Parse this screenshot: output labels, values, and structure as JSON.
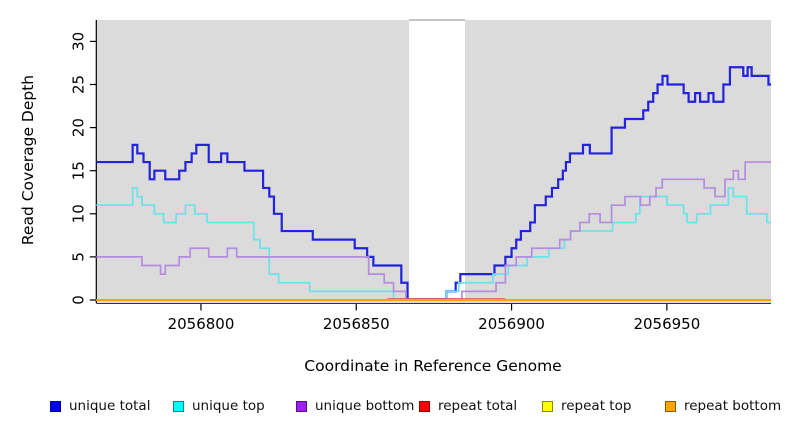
{
  "chart_data": {
    "type": "line",
    "step": true,
    "title": "",
    "xlabel": "Coordinate in Reference Genome",
    "ylabel": "Read Coverage Depth",
    "x_ticks": [
      "2056800",
      "2056850",
      "2056900",
      "2056950"
    ],
    "x_tick_values": [
      2056800,
      2056850,
      2056900,
      2056950
    ],
    "y_ticks": [
      "0",
      "5",
      "10",
      "15",
      "20",
      "25",
      "30"
    ],
    "y_tick_values": [
      0,
      5,
      10,
      15,
      20,
      25,
      30
    ],
    "x_range": [
      2056766.3,
      2056983.5
    ],
    "y_range": [
      0,
      32.5
    ],
    "grid": false,
    "plot_bg": "#DBDBDB",
    "page_bg": "#FFFFFF",
    "highlight_band": {
      "x0": 2056867,
      "x1": 2056885,
      "color": "#FFFFFF",
      "top_line_color": "#A3A3A3"
    },
    "series": [
      {
        "name": "unique-total",
        "label": "unique total",
        "color": "#2323DC",
        "legend_color": "#0000EE",
        "legend_border": "#000090",
        "width": 2.2,
        "zero_lift": true,
        "points": [
          [
            2056766,
            16
          ],
          [
            2056778,
            18
          ],
          [
            2056779.5,
            17
          ],
          [
            2056781.5,
            16
          ],
          [
            2056783.5,
            14
          ],
          [
            2056785,
            15
          ],
          [
            2056788.5,
            14
          ],
          [
            2056793,
            15
          ],
          [
            2056795,
            16
          ],
          [
            2056797,
            17
          ],
          [
            2056798.5,
            18
          ],
          [
            2056802.5,
            16
          ],
          [
            2056806.5,
            17
          ],
          [
            2056808.5,
            16
          ],
          [
            2056814,
            15
          ],
          [
            2056820,
            13
          ],
          [
            2056822,
            12
          ],
          [
            2056823.5,
            10
          ],
          [
            2056826,
            8
          ],
          [
            2056836,
            7
          ],
          [
            2056849.5,
            6
          ],
          [
            2056853.5,
            5
          ],
          [
            2056855.5,
            4
          ],
          [
            2056864.5,
            2
          ],
          [
            2056866.5,
            0
          ],
          [
            2056879,
            1
          ],
          [
            2056882,
            2
          ],
          [
            2056883.5,
            3
          ],
          [
            2056894.5,
            4
          ],
          [
            2056898,
            5
          ],
          [
            2056900,
            6
          ],
          [
            2056901.5,
            7
          ],
          [
            2056903,
            8
          ],
          [
            2056906,
            9
          ],
          [
            2056907.5,
            11
          ],
          [
            2056911,
            12
          ],
          [
            2056913,
            13
          ],
          [
            2056915,
            14
          ],
          [
            2056916.5,
            15
          ],
          [
            2056917.5,
            16
          ],
          [
            2056918.8,
            17
          ],
          [
            2056923,
            18
          ],
          [
            2056925.2,
            17
          ],
          [
            2056932.2,
            20
          ],
          [
            2056936.5,
            21
          ],
          [
            2056942.4,
            22
          ],
          [
            2056944,
            23
          ],
          [
            2056945.6,
            24
          ],
          [
            2056947,
            25
          ],
          [
            2056948.6,
            26
          ],
          [
            2056950.2,
            25
          ],
          [
            2056955.4,
            24
          ],
          [
            2056957,
            23
          ],
          [
            2056959.1,
            24
          ],
          [
            2056960.7,
            23
          ],
          [
            2056963.4,
            24
          ],
          [
            2056965,
            23
          ],
          [
            2056968.2,
            25
          ],
          [
            2056970.3,
            27
          ],
          [
            2056974.6,
            26
          ],
          [
            2056976,
            27
          ],
          [
            2056977.3,
            26
          ],
          [
            2056982.7,
            25
          ]
        ]
      },
      {
        "name": "unique-top",
        "label": "unique top",
        "color": "#69E2EA",
        "legend_color": "#00FFFF",
        "legend_border": "#008B8B",
        "width": 1.7,
        "zero_lift": true,
        "points": [
          [
            2056766,
            11
          ],
          [
            2056778,
            13
          ],
          [
            2056779.5,
            12
          ],
          [
            2056781,
            11
          ],
          [
            2056785,
            10
          ],
          [
            2056788,
            9
          ],
          [
            2056792,
            10
          ],
          [
            2056795,
            11
          ],
          [
            2056798,
            10
          ],
          [
            2056802,
            9
          ],
          [
            2056817,
            7
          ],
          [
            2056819,
            6
          ],
          [
            2056822,
            3
          ],
          [
            2056825,
            2
          ],
          [
            2056835,
            1
          ],
          [
            2056862,
            0
          ],
          [
            2056879,
            1
          ],
          [
            2056883,
            2
          ],
          [
            2056894,
            3
          ],
          [
            2056899,
            4
          ],
          [
            2056905,
            5
          ],
          [
            2056912,
            6
          ],
          [
            2056917,
            7
          ],
          [
            2056919,
            8
          ],
          [
            2056932.5,
            9
          ],
          [
            2056940,
            10
          ],
          [
            2056941.3,
            12
          ],
          [
            2056950,
            11
          ],
          [
            2056955.4,
            10
          ],
          [
            2056956.5,
            9
          ],
          [
            2056959.6,
            10
          ],
          [
            2056964,
            11
          ],
          [
            2056969.8,
            13
          ],
          [
            2056971.4,
            12
          ],
          [
            2056975.7,
            10
          ],
          [
            2056982.2,
            9
          ]
        ]
      },
      {
        "name": "unique-bottom",
        "label": "unique bottom",
        "color": "#B48CDE",
        "legend_color": "#A020F0",
        "legend_border": "#5A0B8C",
        "width": 1.7,
        "zero_lift": true,
        "points": [
          [
            2056766,
            5
          ],
          [
            2056781,
            4
          ],
          [
            2056787,
            3
          ],
          [
            2056788.5,
            4
          ],
          [
            2056793,
            5
          ],
          [
            2056796.5,
            6
          ],
          [
            2056802.5,
            5
          ],
          [
            2056808.5,
            6
          ],
          [
            2056811.5,
            5
          ],
          [
            2056854,
            3
          ],
          [
            2056859,
            2
          ],
          [
            2056862,
            1
          ],
          [
            2056866,
            0
          ],
          [
            2056884,
            1
          ],
          [
            2056895,
            2
          ],
          [
            2056898,
            4
          ],
          [
            2056901.5,
            5
          ],
          [
            2056906.5,
            6
          ],
          [
            2056915.5,
            7
          ],
          [
            2056919,
            8
          ],
          [
            2056922,
            9
          ],
          [
            2056925,
            10
          ],
          [
            2056928.5,
            9
          ],
          [
            2056932.2,
            11
          ],
          [
            2056936.5,
            12
          ],
          [
            2056941.5,
            11
          ],
          [
            2056944.5,
            12
          ],
          [
            2056946.5,
            13
          ],
          [
            2056948.5,
            14
          ],
          [
            2056962,
            13
          ],
          [
            2056965.5,
            12
          ],
          [
            2056968.7,
            14
          ],
          [
            2056971.4,
            15
          ],
          [
            2056973,
            14
          ],
          [
            2056975.2,
            16
          ]
        ]
      },
      {
        "name": "repeat-top",
        "label": "repeat top",
        "color": "#FFFF00",
        "legend_color": "#FFFF00",
        "legend_border": "#8B8B00",
        "width": 2,
        "zero_lift": false,
        "points": [
          [
            2056766,
            0
          ]
        ]
      },
      {
        "name": "repeat-total",
        "label": "repeat total",
        "color": "#F0425C",
        "legend_color": "#FF0000",
        "legend_border": "#8B0000",
        "width": 1.8,
        "zero_lift": false,
        "peek": {
          "x0": 2056860,
          "x1": 2056898,
          "lift": 1.1
        },
        "points": [
          [
            2056766,
            0
          ]
        ]
      },
      {
        "name": "repeat-bottom",
        "label": "repeat bottom",
        "color": "#FFA500",
        "legend_color": "#FFA500",
        "legend_border": "#8B5A00",
        "width": 2,
        "zero_lift": false,
        "points": [
          [
            2056766,
            0
          ]
        ]
      }
    ]
  },
  "legend": {
    "items": [
      {
        "label": "unique total"
      },
      {
        "label": "unique top"
      },
      {
        "label": "unique bottom"
      },
      {
        "label": "repeat total"
      },
      {
        "label": "repeat top"
      },
      {
        "label": "repeat bottom"
      }
    ]
  }
}
